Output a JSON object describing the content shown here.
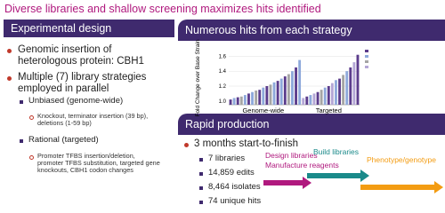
{
  "title": "Diverse libraries and shallow screening maximizes hits identified",
  "design": {
    "header": "Experimental design",
    "items": [
      "Genomic insertion of heterologous protein: CBH1",
      "Multiple (7) library strategies employed in parallel",
      "Unbiased (genome-wide)",
      "Knockout, terminator insertion (39 bp), deletions (1-59 bp)",
      "Rational (targeted)",
      "Promoter TFBS insertion/deletion, promoter TFBS substitution, targeted gene knockouts, CBH1 codon changes"
    ]
  },
  "hits": {
    "header": "Numerous hits from each strategy"
  },
  "chart_data": {
    "type": "bar",
    "ylabel": "Fold Change over Base Strain",
    "categories": [
      null,
      null,
      null,
      null,
      null,
      null,
      null,
      null,
      null,
      "Genome-wide",
      null,
      null,
      null,
      null,
      null,
      null,
      null,
      null,
      null,
      null,
      null,
      null,
      null,
      null,
      null,
      null,
      null,
      "Targeted",
      null,
      null,
      null,
      null,
      null,
      null,
      null,
      null
    ],
    "values": [
      1.02,
      1.04,
      1.05,
      1.06,
      1.08,
      1.1,
      1.12,
      1.14,
      1.15,
      1.18,
      1.2,
      1.22,
      1.25,
      1.27,
      1.3,
      1.33,
      1.36,
      1.4,
      1.45,
      1.55,
      1.04,
      1.06,
      1.08,
      1.1,
      1.12,
      1.15,
      1.18,
      1.2,
      1.24,
      1.28,
      1.3,
      1.35,
      1.4,
      1.45,
      1.52,
      1.62
    ],
    "colors": [
      "#5b3c8c",
      "#8ea9db",
      "#5b3c8c",
      "#a5a5a5",
      "#8ea9db",
      "#5b3c8c",
      "#8ea9db",
      "#a5a5a5",
      "#5b3c8c",
      "#8ea9db",
      "#5b3c8c",
      "#a5a5a5",
      "#8ea9db",
      "#5b3c8c",
      "#8ea9db",
      "#5b3c8c",
      "#a5a5a5",
      "#8ea9db",
      "#5b3c8c",
      "#8ea9db",
      "#b4a7d6",
      "#5b3c8c",
      "#8ea9db",
      "#b4a7d6",
      "#5b3c8c",
      "#a5a5a5",
      "#8ea9db",
      "#5b3c8c",
      "#b4a7d6",
      "#8ea9db",
      "#5b3c8c",
      "#a5a5a5",
      "#8ea9db",
      "#5b3c8c",
      "#b4a7d6",
      "#5b3c8c"
    ],
    "ylim": [
      0.95,
      1.7
    ],
    "yticks": [
      {
        "value": 1,
        "label": "1.0"
      },
      {
        "value": 1.2,
        "label": "1.2"
      },
      {
        "value": 1.4,
        "label": "1.4"
      },
      {
        "value": 1.6,
        "label": "1.6"
      }
    ]
  },
  "production": {
    "header": "Rapid production",
    "main": "3 months start-to-finish",
    "items": [
      "7 libraries",
      "14,859 edits",
      "8,464 isolates",
      "74 unique hits"
    ],
    "steps": [
      "Design libraries",
      "Manufacture reagents",
      "Build libraries",
      "Phenotype/genotype"
    ]
  }
}
